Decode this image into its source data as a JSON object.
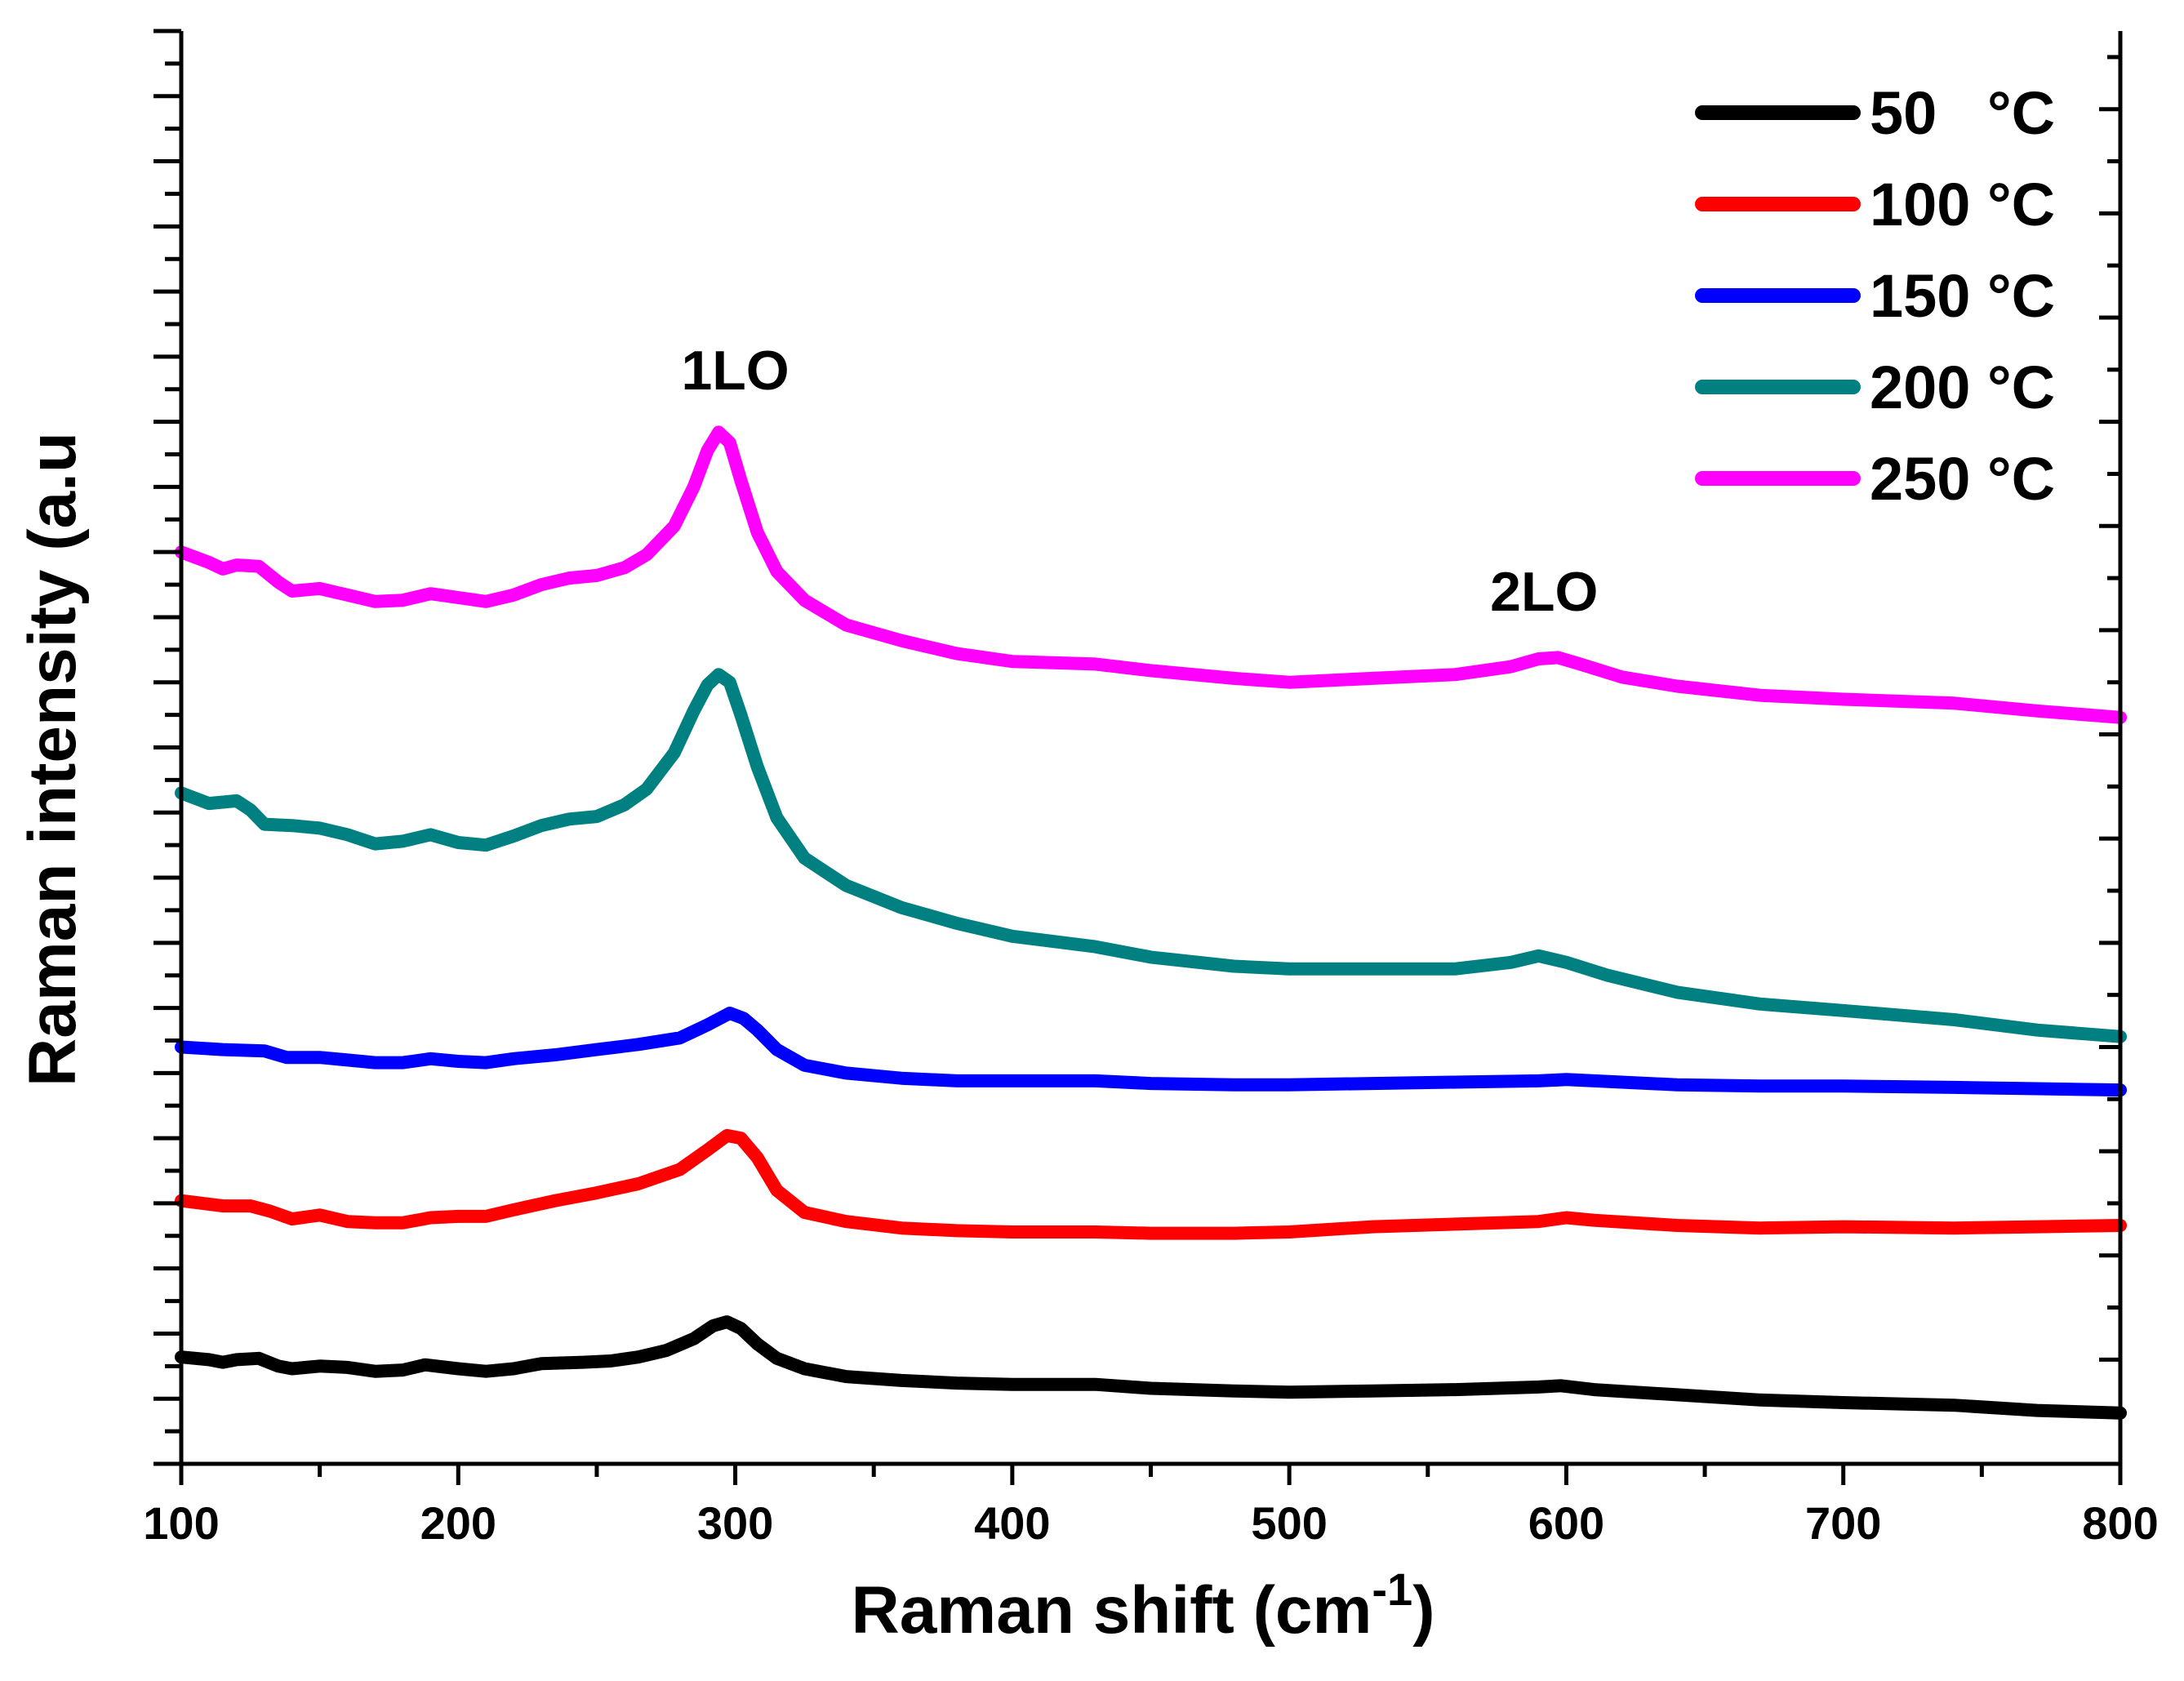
{
  "chart_data": {
    "type": "line",
    "title": "",
    "xlabel": "Raman shift (cm",
    "xlabel_sup": "-1",
    "xlabel_close": ")",
    "ylabel": "Raman intensity (a.u",
    "xlim": [
      100,
      800
    ],
    "ylim": [
      0,
      110
    ],
    "x_ticks": [
      "100",
      "200",
      "300",
      "400",
      "500",
      "600",
      "700",
      "800"
    ],
    "grid": false,
    "legend_position": "top-right",
    "annotations": [
      {
        "text": "1LO",
        "x": 300,
        "y": 82.5
      },
      {
        "text": "2LO",
        "x": 592,
        "y": 65.5
      }
    ],
    "series": [
      {
        "name": "50   °C",
        "color": "#000000",
        "points": [
          [
            100,
            8.2
          ],
          [
            110,
            8.0
          ],
          [
            115,
            7.8
          ],
          [
            120,
            8.0
          ],
          [
            128,
            8.1
          ],
          [
            135,
            7.5
          ],
          [
            140,
            7.3
          ],
          [
            150,
            7.5
          ],
          [
            160,
            7.4
          ],
          [
            170,
            7.1
          ],
          [
            180,
            7.2
          ],
          [
            188,
            7.6
          ],
          [
            200,
            7.3
          ],
          [
            210,
            7.1
          ],
          [
            220,
            7.3
          ],
          [
            230,
            7.7
          ],
          [
            245,
            7.8
          ],
          [
            255,
            7.9
          ],
          [
            265,
            8.2
          ],
          [
            275,
            8.7
          ],
          [
            285,
            9.6
          ],
          [
            292,
            10.6
          ],
          [
            297,
            10.9
          ],
          [
            302,
            10.4
          ],
          [
            308,
            9.2
          ],
          [
            315,
            8.1
          ],
          [
            325,
            7.3
          ],
          [
            340,
            6.7
          ],
          [
            360,
            6.4
          ],
          [
            380,
            6.2
          ],
          [
            400,
            6.1
          ],
          [
            430,
            6.1
          ],
          [
            450,
            5.8
          ],
          [
            480,
            5.6
          ],
          [
            500,
            5.5
          ],
          [
            530,
            5.6
          ],
          [
            560,
            5.7
          ],
          [
            590,
            5.9
          ],
          [
            598,
            6.0
          ],
          [
            610,
            5.7
          ],
          [
            640,
            5.3
          ],
          [
            670,
            4.9
          ],
          [
            700,
            4.7
          ],
          [
            740,
            4.5
          ],
          [
            770,
            4.1
          ],
          [
            800,
            3.9
          ]
        ]
      },
      {
        "name": "100 °C",
        "color": "#ff0000",
        "points": [
          [
            100,
            20.2
          ],
          [
            115,
            19.8
          ],
          [
            125,
            19.8
          ],
          [
            132,
            19.4
          ],
          [
            140,
            18.8
          ],
          [
            150,
            19.1
          ],
          [
            160,
            18.6
          ],
          [
            170,
            18.5
          ],
          [
            180,
            18.5
          ],
          [
            190,
            18.9
          ],
          [
            200,
            19.0
          ],
          [
            210,
            19.0
          ],
          [
            220,
            19.5
          ],
          [
            235,
            20.2
          ],
          [
            250,
            20.8
          ],
          [
            265,
            21.5
          ],
          [
            280,
            22.6
          ],
          [
            290,
            24.1
          ],
          [
            297,
            25.2
          ],
          [
            302,
            25.0
          ],
          [
            308,
            23.5
          ],
          [
            315,
            21.0
          ],
          [
            325,
            19.3
          ],
          [
            340,
            18.6
          ],
          [
            360,
            18.1
          ],
          [
            380,
            17.9
          ],
          [
            400,
            17.8
          ],
          [
            430,
            17.8
          ],
          [
            450,
            17.7
          ],
          [
            480,
            17.7
          ],
          [
            500,
            17.8
          ],
          [
            530,
            18.2
          ],
          [
            560,
            18.4
          ],
          [
            590,
            18.6
          ],
          [
            600,
            18.9
          ],
          [
            610,
            18.7
          ],
          [
            640,
            18.3
          ],
          [
            670,
            18.1
          ],
          [
            700,
            18.2
          ],
          [
            740,
            18.1
          ],
          [
            770,
            18.2
          ],
          [
            800,
            18.3
          ]
        ]
      },
      {
        "name": "150 °C",
        "color": "#0000ff",
        "points": [
          [
            100,
            32.0
          ],
          [
            115,
            31.8
          ],
          [
            130,
            31.7
          ],
          [
            138,
            31.2
          ],
          [
            150,
            31.2
          ],
          [
            160,
            31.0
          ],
          [
            170,
            30.8
          ],
          [
            180,
            30.8
          ],
          [
            190,
            31.1
          ],
          [
            200,
            30.9
          ],
          [
            210,
            30.8
          ],
          [
            220,
            31.1
          ],
          [
            235,
            31.4
          ],
          [
            250,
            31.8
          ],
          [
            265,
            32.2
          ],
          [
            280,
            32.7
          ],
          [
            290,
            33.7
          ],
          [
            298,
            34.6
          ],
          [
            303,
            34.2
          ],
          [
            308,
            33.3
          ],
          [
            315,
            31.8
          ],
          [
            325,
            30.6
          ],
          [
            340,
            30.0
          ],
          [
            360,
            29.6
          ],
          [
            380,
            29.4
          ],
          [
            400,
            29.4
          ],
          [
            430,
            29.4
          ],
          [
            450,
            29.2
          ],
          [
            480,
            29.1
          ],
          [
            500,
            29.1
          ],
          [
            530,
            29.2
          ],
          [
            560,
            29.3
          ],
          [
            590,
            29.4
          ],
          [
            600,
            29.5
          ],
          [
            610,
            29.4
          ],
          [
            640,
            29.1
          ],
          [
            670,
            29.0
          ],
          [
            700,
            29.0
          ],
          [
            740,
            28.9
          ],
          [
            770,
            28.8
          ],
          [
            800,
            28.7
          ]
        ]
      },
      {
        "name": "200 °C",
        "color": "#008080",
        "points": [
          [
            100,
            51.5
          ],
          [
            110,
            50.7
          ],
          [
            120,
            50.9
          ],
          [
            125,
            50.2
          ],
          [
            130,
            49.1
          ],
          [
            140,
            49.0
          ],
          [
            150,
            48.8
          ],
          [
            160,
            48.3
          ],
          [
            170,
            47.6
          ],
          [
            180,
            47.8
          ],
          [
            190,
            48.3
          ],
          [
            200,
            47.7
          ],
          [
            210,
            47.5
          ],
          [
            220,
            48.2
          ],
          [
            230,
            49.0
          ],
          [
            240,
            49.5
          ],
          [
            250,
            49.7
          ],
          [
            260,
            50.6
          ],
          [
            268,
            51.8
          ],
          [
            278,
            54.6
          ],
          [
            285,
            57.8
          ],
          [
            290,
            59.8
          ],
          [
            294,
            60.6
          ],
          [
            298,
            60.0
          ],
          [
            302,
            57.5
          ],
          [
            308,
            53.5
          ],
          [
            315,
            49.6
          ],
          [
            325,
            46.5
          ],
          [
            340,
            44.4
          ],
          [
            360,
            42.7
          ],
          [
            380,
            41.5
          ],
          [
            400,
            40.5
          ],
          [
            430,
            39.7
          ],
          [
            450,
            38.9
          ],
          [
            480,
            38.2
          ],
          [
            500,
            38.0
          ],
          [
            530,
            38.0
          ],
          [
            560,
            38.0
          ],
          [
            580,
            38.5
          ],
          [
            590,
            39.0
          ],
          [
            600,
            38.5
          ],
          [
            615,
            37.5
          ],
          [
            640,
            36.2
          ],
          [
            670,
            35.3
          ],
          [
            700,
            34.8
          ],
          [
            740,
            34.1
          ],
          [
            770,
            33.3
          ],
          [
            800,
            32.8
          ]
        ]
      },
      {
        "name": "250 °C",
        "color": "#ff00ff",
        "points": [
          [
            100,
            70.0
          ],
          [
            110,
            69.2
          ],
          [
            115,
            68.7
          ],
          [
            120,
            69.0
          ],
          [
            128,
            68.9
          ],
          [
            135,
            67.7
          ],
          [
            140,
            67.0
          ],
          [
            150,
            67.2
          ],
          [
            160,
            66.7
          ],
          [
            170,
            66.2
          ],
          [
            180,
            66.3
          ],
          [
            190,
            66.8
          ],
          [
            200,
            66.5
          ],
          [
            210,
            66.2
          ],
          [
            220,
            66.7
          ],
          [
            230,
            67.5
          ],
          [
            240,
            68.0
          ],
          [
            250,
            68.2
          ],
          [
            260,
            68.8
          ],
          [
            268,
            69.8
          ],
          [
            278,
            72.0
          ],
          [
            285,
            75.0
          ],
          [
            290,
            77.8
          ],
          [
            294,
            79.2
          ],
          [
            298,
            78.4
          ],
          [
            302,
            75.5
          ],
          [
            308,
            71.5
          ],
          [
            315,
            68.5
          ],
          [
            325,
            66.3
          ],
          [
            340,
            64.4
          ],
          [
            360,
            63.2
          ],
          [
            380,
            62.2
          ],
          [
            400,
            61.6
          ],
          [
            430,
            61.4
          ],
          [
            450,
            60.9
          ],
          [
            480,
            60.3
          ],
          [
            500,
            60.0
          ],
          [
            530,
            60.3
          ],
          [
            560,
            60.6
          ],
          [
            580,
            61.2
          ],
          [
            590,
            61.8
          ],
          [
            597,
            61.9
          ],
          [
            605,
            61.4
          ],
          [
            620,
            60.4
          ],
          [
            640,
            59.7
          ],
          [
            670,
            59.0
          ],
          [
            700,
            58.7
          ],
          [
            740,
            58.4
          ],
          [
            770,
            57.8
          ],
          [
            800,
            57.3
          ]
        ]
      }
    ]
  }
}
